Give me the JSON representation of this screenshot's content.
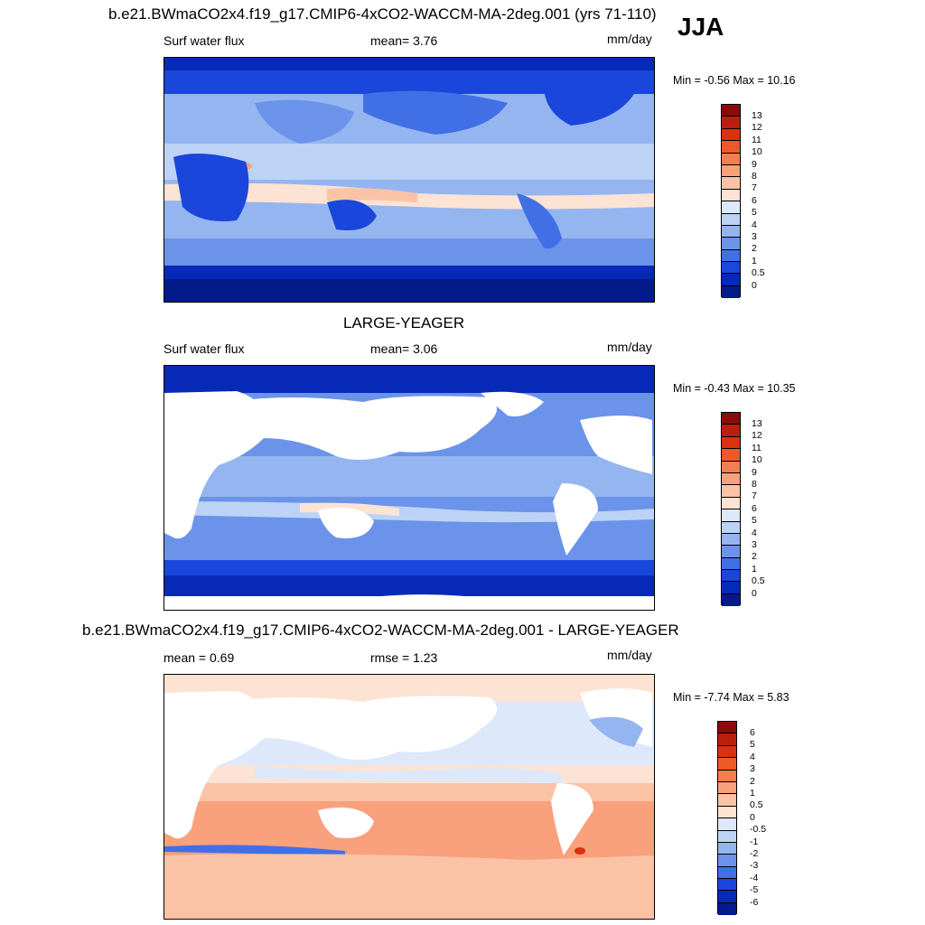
{
  "header": {
    "title": "b.e21.BWmaCO2x4.f19_g17.CMIP6-4xCO2-WACCM-MA-2deg.001 (yrs 71-110)",
    "season": "JJA"
  },
  "panels": [
    {
      "name": "model",
      "left_label": "Surf water flux",
      "center_label": "mean=   3.76",
      "units": "mm/day",
      "minmax": "Min =  -0.56 Max =  10.16",
      "colorbar_labels": [
        "13",
        "12",
        "11",
        "10",
        "9",
        "8",
        "7",
        "6",
        "5",
        "4",
        "3",
        "2",
        "1",
        "0.5",
        "0"
      ],
      "colorbar_colors": [
        "#8b0a0a",
        "#b81f0e",
        "#d9320f",
        "#ec5a28",
        "#f57e50",
        "#f9a07c",
        "#fbc3a6",
        "#fde3d3",
        "#dde9fa",
        "#bcd3f6",
        "#95b5f0",
        "#6b93ea",
        "#4170e6",
        "#1b46db",
        "#0629b8",
        "#021a8a"
      ],
      "title_above": ""
    },
    {
      "name": "obs",
      "title_above": "LARGE-YEAGER",
      "left_label": "Surf water flux",
      "center_label": "mean=   3.06",
      "units": "mm/day",
      "minmax": "Min =  -0.43 Max =  10.35",
      "colorbar_labels": [
        "13",
        "12",
        "11",
        "10",
        "9",
        "8",
        "7",
        "6",
        "5",
        "4",
        "3",
        "2",
        "1",
        "0.5",
        "0"
      ],
      "colorbar_colors": [
        "#8b0a0a",
        "#b81f0e",
        "#d9320f",
        "#ec5a28",
        "#f57e50",
        "#f9a07c",
        "#fbc3a6",
        "#fde3d3",
        "#dde9fa",
        "#bcd3f6",
        "#95b5f0",
        "#6b93ea",
        "#4170e6",
        "#1b46db",
        "#0629b8",
        "#021a8a"
      ]
    },
    {
      "name": "diff",
      "title_above": "b.e21.BWmaCO2x4.f19_g17.CMIP6-4xCO2-WACCM-MA-2deg.001 - LARGE-YEAGER",
      "left_label": "mean =   0.69",
      "center_label": "rmse =   1.23",
      "units": "mm/day",
      "minmax": "Min =  -7.74 Max =   5.83",
      "colorbar_labels": [
        "6",
        "5",
        "4",
        "3",
        "2",
        "1",
        "0.5",
        "0",
        "-0.5",
        "-1",
        "-2",
        "-3",
        "-4",
        "-5",
        "-6"
      ],
      "colorbar_colors": [
        "#8b0a0a",
        "#b81f0e",
        "#d9320f",
        "#ec5a28",
        "#f57e50",
        "#f9a07c",
        "#fbc3a6",
        "#fde3d3",
        "#dde9fa",
        "#bcd3f6",
        "#95b5f0",
        "#6b93ea",
        "#4170e6",
        "#1b46db",
        "#0629b8",
        "#021a8a"
      ]
    }
  ]
}
